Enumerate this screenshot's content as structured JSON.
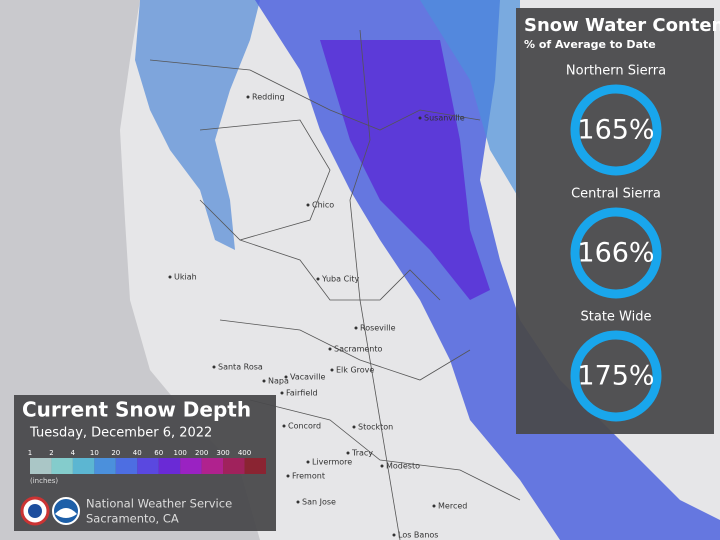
{
  "map": {
    "places": [
      "Redding",
      "Chico",
      "Ukiah",
      "Yuba City",
      "Roseville",
      "Sacramento",
      "Elk Grove",
      "Santa Rosa",
      "Napa",
      "Vacaville",
      "Fairfield",
      "Concord",
      "Stockton",
      "Livermore",
      "Tracy",
      "Modesto",
      "Fremont",
      "San Jose",
      "Merced",
      "Los Banos",
      "Susanville"
    ]
  },
  "snow_water": {
    "title": "Snow Water Content",
    "subtitle": "% of Average to Date",
    "regions": [
      {
        "name": "Northern Sierra",
        "value": "165%"
      },
      {
        "name": "Central Sierra",
        "value": "166%"
      },
      {
        "name": "State Wide",
        "value": "175%"
      }
    ],
    "ring_color": "#19a6ec"
  },
  "snow_depth": {
    "title": "Current Snow Depth",
    "date": "Tuesday, December 6, 2022",
    "legend": [
      {
        "label": 1,
        "color": "#aac6c6"
      },
      {
        "label": 2,
        "color": "#84cccc"
      },
      {
        "label": 4,
        "color": "#5cb6d2"
      },
      {
        "label": 10,
        "color": "#4b90dc"
      },
      {
        "label": 20,
        "color": "#4d6ee2"
      },
      {
        "label": 40,
        "color": "#5a48e0"
      },
      {
        "label": 60,
        "color": "#6a2ad6"
      },
      {
        "label": 100,
        "color": "#9a22c2"
      },
      {
        "label": 200,
        "color": "#b0228e"
      },
      {
        "label": 300,
        "color": "#a0225c"
      },
      {
        "label": 400,
        "color": "#8a2432"
      }
    ],
    "unit": "(inches)",
    "office": "National Weather Service",
    "location": "Sacramento, CA"
  }
}
